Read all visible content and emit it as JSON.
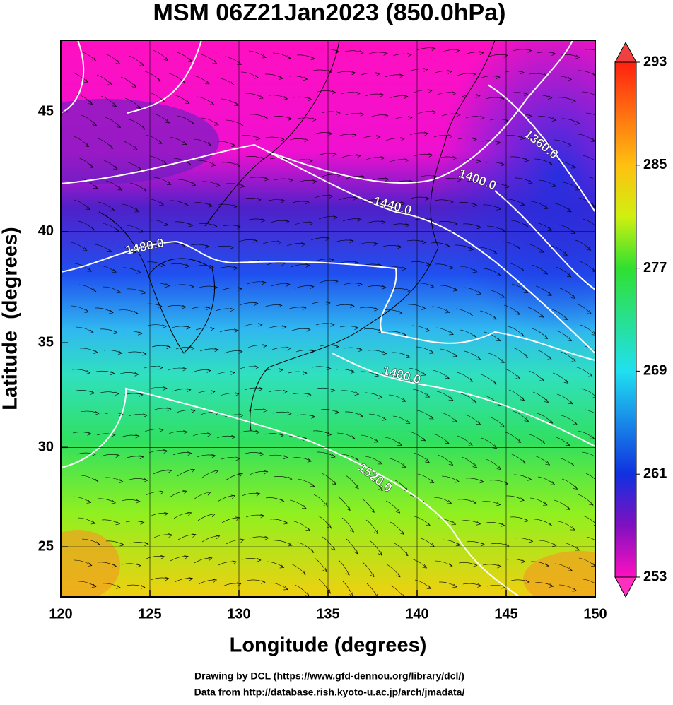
{
  "title": "MSM 06Z21Jan2023 (850.0hPa)",
  "x_axis": {
    "label": "Longitude (degrees)",
    "lim": [
      120,
      150
    ],
    "ticks": [
      120,
      125,
      130,
      135,
      140,
      145,
      150
    ]
  },
  "y_axis": {
    "label": "Latitude  (degrees)",
    "lim": [
      22.4,
      47.8
    ],
    "ticks": [
      25,
      30,
      35,
      40,
      45
    ]
  },
  "colorbar": {
    "lim": [
      253,
      293
    ],
    "ticks": [
      253,
      261,
      269,
      277,
      285,
      293
    ]
  },
  "contours": [
    {
      "label": "1360.0"
    },
    {
      "label": "1400.0"
    },
    {
      "label": "1440.0"
    },
    {
      "label": "1480.0"
    },
    {
      "label": "1480.0"
    },
    {
      "label": "1520.0"
    }
  ],
  "footer": [
    "Drawing by DCL (https://www.gfd-dennou.org/library/dcl/)",
    "Data from http://database.rish.kyoto-u.ac.jp/arch/jmadata/"
  ]
}
